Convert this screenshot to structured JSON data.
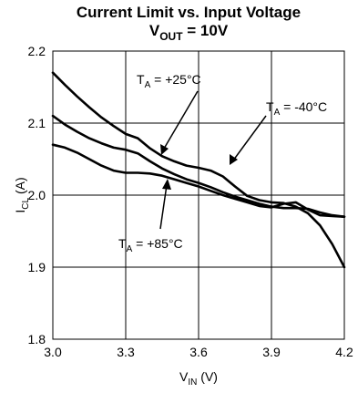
{
  "chart_data": {
    "type": "line",
    "title": "Current Limit vs. Input Voltage",
    "subtitle": {
      "prefix": "V",
      "sub": "OUT",
      "suffix": " = 10V"
    },
    "xlabel": {
      "base": "V",
      "sub": "IN",
      "unit": " (V)"
    },
    "ylabel": {
      "base": "I",
      "sub": "CL",
      "unit": " (A)"
    },
    "xlim": [
      3.0,
      4.2
    ],
    "ylim": [
      1.8,
      2.2
    ],
    "xticks": [
      "3.0",
      "3.3",
      "3.6",
      "3.9",
      "4.2"
    ],
    "yticks": [
      "1.8",
      "1.9",
      "2.0",
      "2.1",
      "2.2"
    ],
    "grid": true,
    "line_color": "#000000",
    "series": [
      {
        "name": "T_A = +25°C",
        "label": {
          "base": "T",
          "sub": "A",
          "text": " = +25°C"
        },
        "x": [
          3.0,
          3.05,
          3.1,
          3.15,
          3.2,
          3.25,
          3.3,
          3.35,
          3.4,
          3.45,
          3.5,
          3.55,
          3.6,
          3.65,
          3.7,
          3.75,
          3.8,
          3.85,
          3.9,
          3.95,
          4.0,
          4.05,
          4.1,
          4.15,
          4.2
        ],
        "values": [
          2.11,
          2.098,
          2.088,
          2.079,
          2.072,
          2.066,
          2.063,
          2.058,
          2.047,
          2.037,
          2.029,
          2.022,
          2.017,
          2.011,
          2.004,
          1.998,
          1.993,
          1.988,
          1.984,
          1.982,
          1.982,
          1.981,
          1.976,
          1.972,
          1.97
        ]
      },
      {
        "name": "T_A = -40°C",
        "label": {
          "base": "T",
          "sub": "A",
          "text": " = -40°C"
        },
        "x": [
          3.0,
          3.05,
          3.1,
          3.15,
          3.2,
          3.25,
          3.3,
          3.35,
          3.4,
          3.45,
          3.5,
          3.55,
          3.6,
          3.65,
          3.7,
          3.75,
          3.8,
          3.85,
          3.9,
          3.95,
          4.0,
          4.05,
          4.1,
          4.15,
          4.2
        ],
        "values": [
          2.17,
          2.153,
          2.137,
          2.122,
          2.108,
          2.096,
          2.085,
          2.079,
          2.065,
          2.054,
          2.047,
          2.041,
          2.038,
          2.034,
          2.026,
          2.012,
          1.999,
          1.993,
          1.99,
          1.989,
          1.984,
          1.975,
          1.958,
          1.932,
          1.9
        ]
      },
      {
        "name": "T_A = +85°C",
        "label": {
          "base": "T",
          "sub": "A",
          "text": " = +85°C"
        },
        "x": [
          3.0,
          3.05,
          3.1,
          3.15,
          3.2,
          3.25,
          3.3,
          3.35,
          3.4,
          3.45,
          3.5,
          3.55,
          3.6,
          3.65,
          3.7,
          3.75,
          3.8,
          3.85,
          3.9,
          3.95,
          4.0,
          4.05,
          4.1,
          4.15,
          4.2
        ],
        "values": [
          2.07,
          2.066,
          2.059,
          2.05,
          2.041,
          2.034,
          2.031,
          2.031,
          2.03,
          2.027,
          2.022,
          2.017,
          2.012,
          2.006,
          2.0,
          1.995,
          1.99,
          1.985,
          1.983,
          1.988,
          1.99,
          1.98,
          1.972,
          1.971,
          1.97
        ]
      }
    ]
  }
}
